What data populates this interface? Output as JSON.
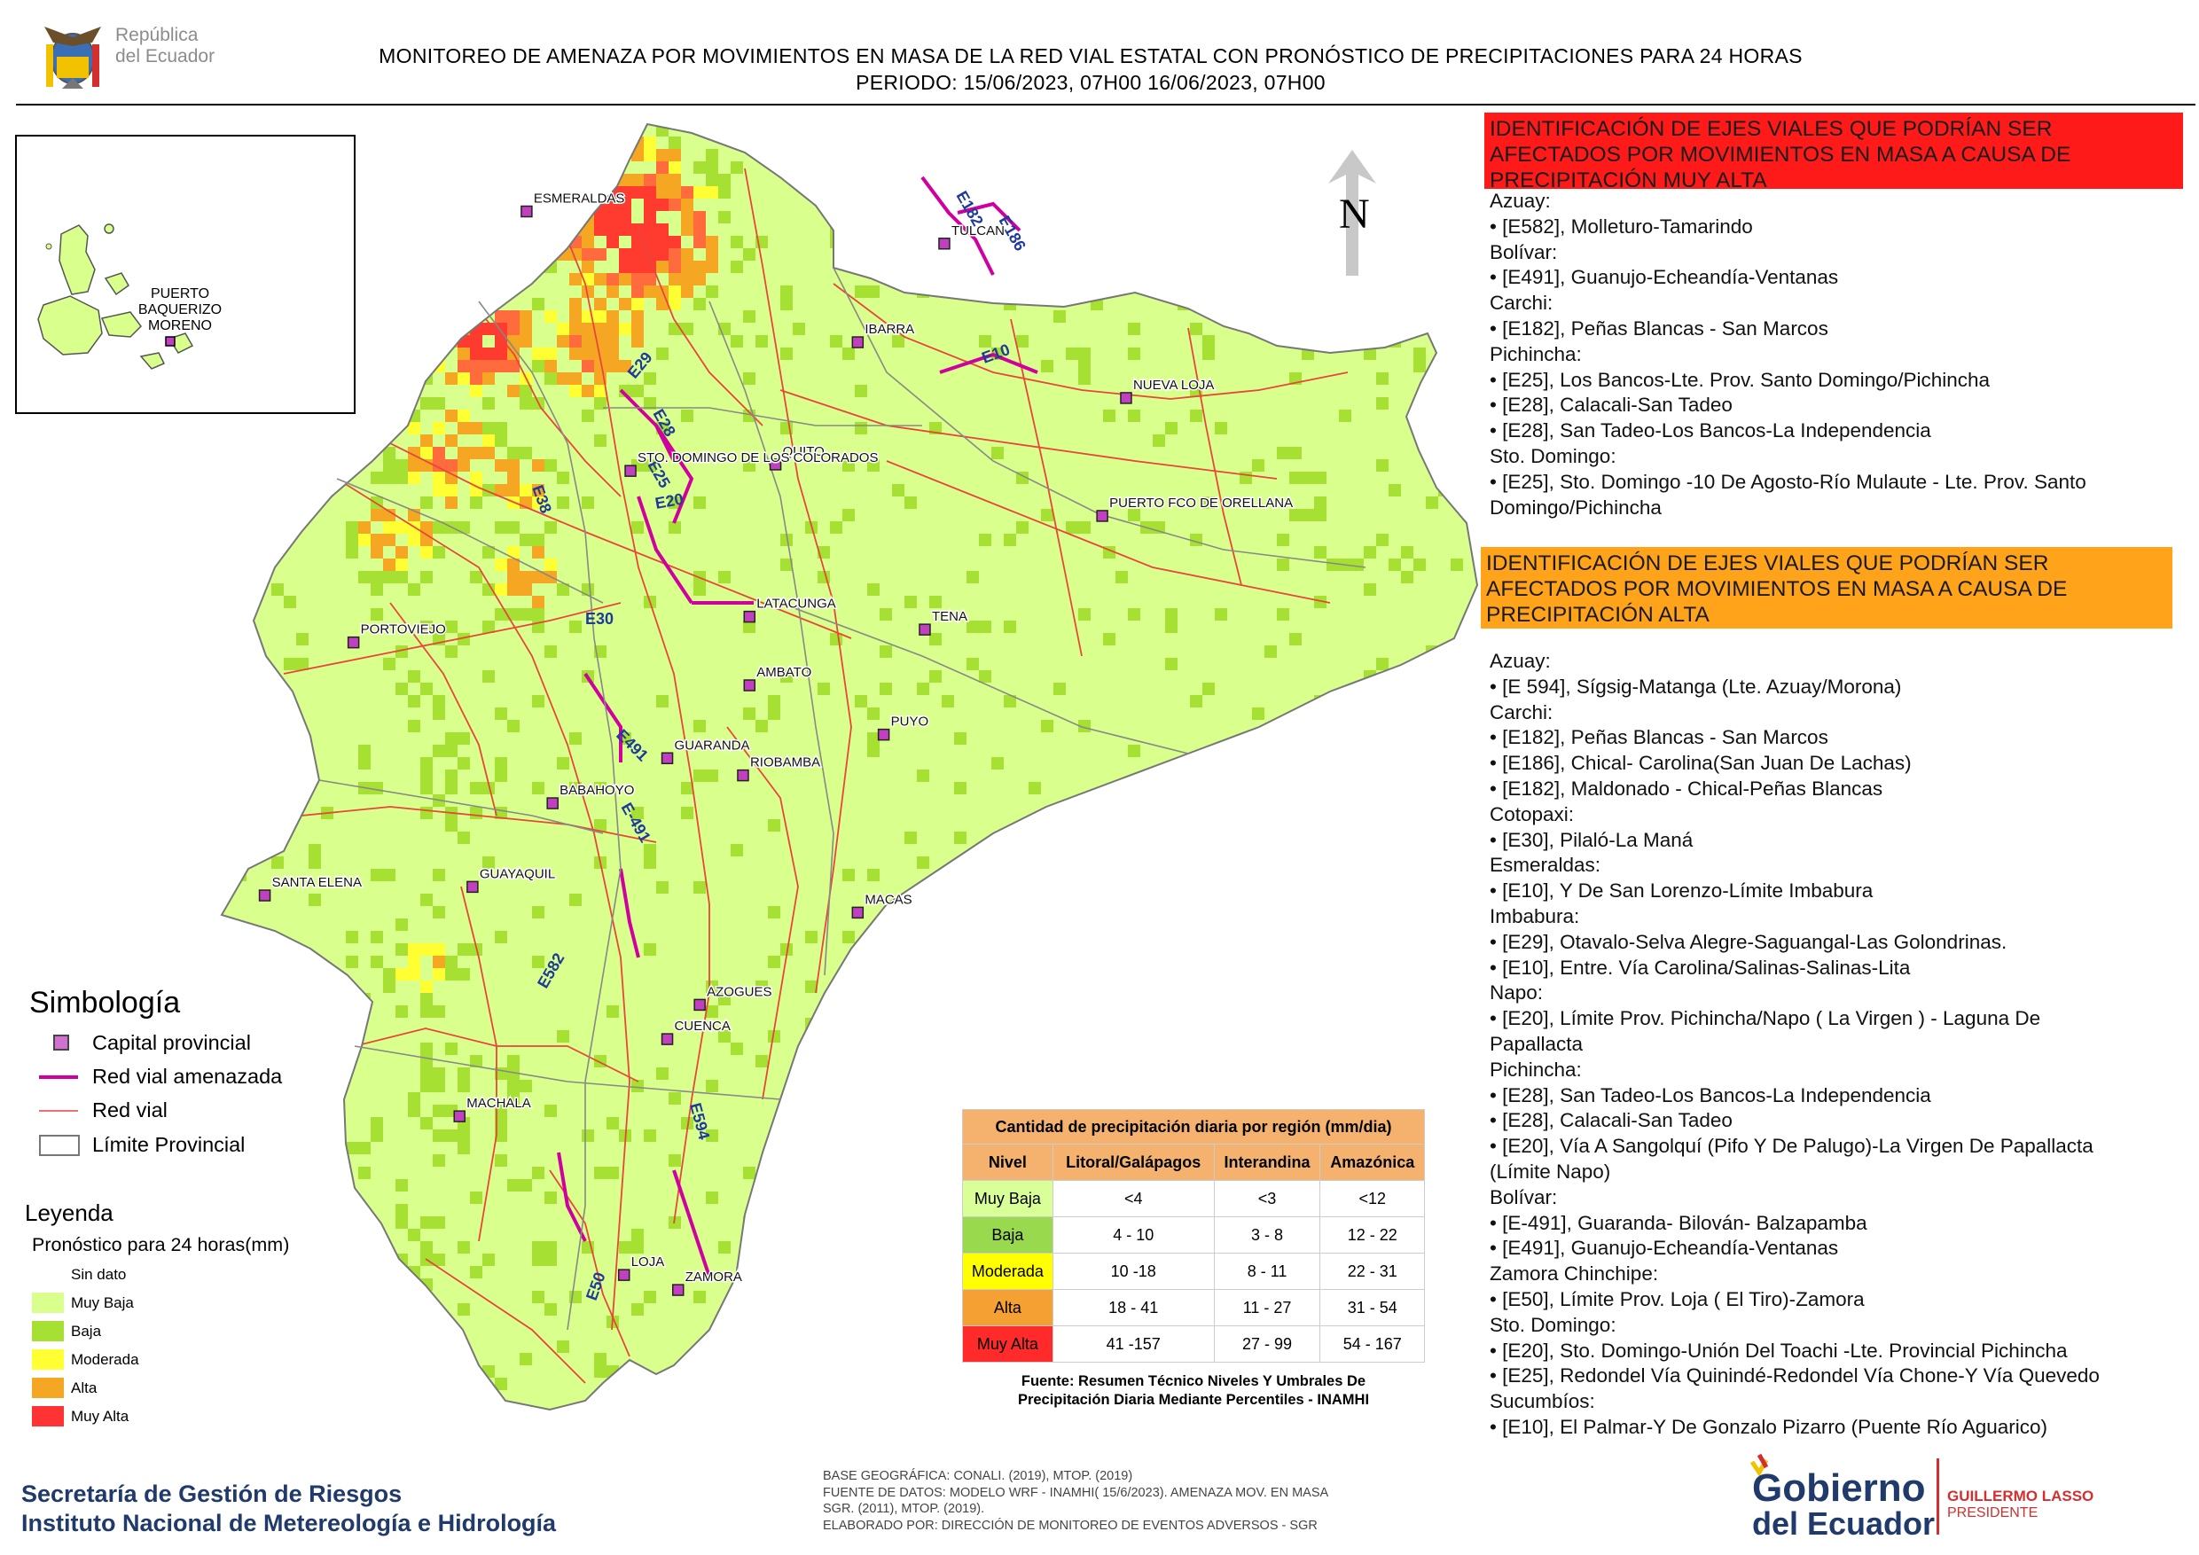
{
  "header": {
    "republica_line1": "República",
    "republica_line2": "del Ecuador",
    "title_line1": "MONITOREO DE AMENAZA POR MOVIMIENTOS EN MASA DE LA RED VIAL  ESTATAL  CON PRONÓSTICO  DE  PRECIPITACIONES PARA 24 HORAS",
    "title_line2": "PERIODO: 15/06/2023, 07H00 16/06/2023, 07H00"
  },
  "map": {
    "north_label": "N",
    "inset_city": [
      "PUERTO",
      "BAQUERIZO",
      "MORENO"
    ],
    "cities": [
      {
        "name": "ESMERALDAS",
        "lon": -79.65,
        "lat": 0.96
      },
      {
        "name": "TULCAN",
        "lon": -77.72,
        "lat": 0.81
      },
      {
        "name": "IBARRA",
        "lon": -78.12,
        "lat": 0.35
      },
      {
        "name": "NUEVA LOJA",
        "lon": -76.88,
        "lat": 0.09
      },
      {
        "name": "QUITO",
        "lon": -78.5,
        "lat": -0.22
      },
      {
        "name": "STO. DOMINGO DE LOS COLORADOS",
        "lon": -79.17,
        "lat": -0.25
      },
      {
        "name": "PUERTO FCO DE ORELLANA",
        "lon": -76.99,
        "lat": -0.46
      },
      {
        "name": "LATACUNGA",
        "lon": -78.62,
        "lat": -0.93
      },
      {
        "name": "TENA",
        "lon": -77.81,
        "lat": -0.99
      },
      {
        "name": "PORTOVIEJO",
        "lon": -80.45,
        "lat": -1.05
      },
      {
        "name": "AMBATO",
        "lon": -78.62,
        "lat": -1.25
      },
      {
        "name": "PUYO",
        "lon": -78.0,
        "lat": -1.48
      },
      {
        "name": "GUARANDA",
        "lon": -79.0,
        "lat": -1.59
      },
      {
        "name": "RIOBAMBA",
        "lon": -78.65,
        "lat": -1.67
      },
      {
        "name": "BABAHOYO",
        "lon": -79.53,
        "lat": -1.8
      },
      {
        "name": "GUAYAQUIL",
        "lon": -79.9,
        "lat": -2.19
      },
      {
        "name": "SANTA ELENA",
        "lon": -80.86,
        "lat": -2.23
      },
      {
        "name": "MACAS",
        "lon": -78.12,
        "lat": -2.31
      },
      {
        "name": "AZOGUES",
        "lon": -78.85,
        "lat": -2.74
      },
      {
        "name": "CUENCA",
        "lon": -79.0,
        "lat": -2.9
      },
      {
        "name": "MACHALA",
        "lon": -79.96,
        "lat": -3.26
      },
      {
        "name": "LOJA",
        "lon": -79.2,
        "lat": -4.0
      },
      {
        "name": "ZAMORA",
        "lon": -78.95,
        "lat": -4.07
      }
    ],
    "road_labels": [
      "E182",
      "E186",
      "E10",
      "E29",
      "E28",
      "E25",
      "E20",
      "E38",
      "E30",
      "E491",
      "E-491",
      "E582",
      "E594",
      "E50"
    ]
  },
  "panel_red": {
    "heading": [
      "IDENTIFICACIÓN DE EJES VIALES QUE PODRÍAN SER",
      "AFECTADOS POR MOVIMIENTOS EN MASA A CAUSA DE",
      "PRECIPITACIÓN MUY ALTA"
    ],
    "lines": [
      "Azuay:",
      "• [E582], Molleturo-Tamarindo",
      "Bolívar:",
      "• [E491], Guanujo-Echeandía-Ventanas",
      "Carchi:",
      "• [E182], Peñas Blancas - San Marcos",
      "Pichincha:",
      "• [E25], Los Bancos-Lte. Prov. Santo Domingo/Pichincha",
      "• [E28], Calacali-San Tadeo",
      "• [E28], San Tadeo-Los Bancos-La Independencia",
      "Sto. Domingo:",
      "• [E25], Sto. Domingo -10 De Agosto-Río Mulaute - Lte. Prov. Santo",
      "Domingo/Pichincha"
    ]
  },
  "panel_orange": {
    "heading": [
      "IDENTIFICACIÓN DE EJES VIALES QUE PODRÍAN SER",
      "AFECTADOS POR MOVIMIENTOS EN MASA A CAUSA DE",
      "PRECIPITACIÓN  ALTA"
    ],
    "lines": [
      "Azuay:",
      "• [E 594], Sígsig-Matanga (Lte. Azuay/Morona)",
      "Carchi:",
      "• [E182], Peñas Blancas - San Marcos",
      "• [E186], Chical- Carolina(San Juan De Lachas)",
      "• [E182], Maldonado - Chical-Peñas Blancas",
      "Cotopaxi:",
      "• [E30], Pilaló-La Maná",
      "Esmeraldas:",
      "• [E10], Y De San Lorenzo-Límite Imbabura",
      "Imbabura:",
      "• [E29], Otavalo-Selva Alegre-Saguangal-Las Golondrinas.",
      "• [E10], Entre. Vía Carolina/Salinas-Salinas-Lita",
      "Napo:",
      "• [E20], Límite Prov. Pichincha/Napo ( La Virgen ) - Laguna De",
      "Papallacta",
      "Pichincha:",
      "• [E28], San Tadeo-Los Bancos-La Independencia",
      "• [E28], Calacali-San Tadeo",
      "• [E20], Vía A Sangolquí (Pifo Y De Palugo)-La Virgen De Papallacta",
      "(Límite Napo)",
      "Bolívar:",
      "• [E-491], Guaranda- Bilován- Balzapamba",
      "• [E491], Guanujo-Echeandía-Ventanas",
      "Zamora Chinchipe:",
      "• [E50], Límite Prov. Loja ( El Tiro)-Zamora",
      "Sto. Domingo:",
      "• [E20], Sto. Domingo-Unión Del Toachi -Lte. Provincial Pichincha",
      "• [E25], Redondel Vía Quinindé-Redondel Vía Chone-Y Vía Quevedo",
      "Sucumbíos:",
      "• [E10], El Palmar-Y De Gonzalo Pizarro (Puente Río Aguarico)"
    ]
  },
  "simbologia": {
    "title": "Simbología",
    "capital": "Capital provincial",
    "threatened": "Red vial amenazada",
    "road": "Red vial",
    "boundary": "Límite Provincial"
  },
  "leyenda": {
    "title": "Leyenda",
    "subtitle": "Pronóstico para 24 horas(mm)",
    "items": [
      {
        "label": "Sin dato",
        "color": "#ffffff"
      },
      {
        "label": "Muy Baja",
        "color": "#d9ff8c"
      },
      {
        "label": "Baja",
        "color": "#a6e033"
      },
      {
        "label": "Moderada",
        "color": "#ffff33"
      },
      {
        "label": "Alta",
        "color": "#f5a623"
      },
      {
        "label": "Muy Alta",
        "color": "#ff3333"
      }
    ]
  },
  "precip_table": {
    "caption": "Cantidad de precipitación diaria por región (mm/dia)",
    "headers": [
      "Nivel",
      "Litoral/Galápagos",
      "Interandina",
      "Amazónica"
    ],
    "rows": [
      {
        "level": "Muy Baja",
        "color": "#d9ff99",
        "values": [
          "<4",
          "<3",
          "<12"
        ]
      },
      {
        "level": "Baja",
        "color": "#99d94d",
        "values": [
          "4 - 10",
          "3 - 8",
          "12 - 22"
        ]
      },
      {
        "level": "Moderada",
        "color": "#ffff00",
        "values": [
          "10 -18",
          "8 - 11",
          "22 - 31"
        ]
      },
      {
        "level": "Alta",
        "color": "#f5a033",
        "values": [
          "18 - 41",
          "11 - 27",
          "31 - 54"
        ]
      },
      {
        "level": "Muy Alta",
        "color": "#ff2a2a",
        "values": [
          "41 -157",
          "27 - 99",
          "54 - 167"
        ]
      }
    ],
    "source_line1": "Fuente: Resumen Técnico Niveles Y Umbrales De",
    "source_line2": "Precipitación Diaria Mediante Percentiles - INAMHI"
  },
  "footer": {
    "sgr_line1": "Secretaría de Gestión de Riesgos",
    "sgr_line2": "Instituto Nacional de Metereología e Hidrología",
    "base_lines": [
      "BASE GEOGRÁFICA: CONALI. (2019), MTOP. (2019)",
      "FUENTE DE DATOS: MODELO WRF - INAMHI( 15/6/2023).  AMENAZA MOV. EN MASA",
      "SGR. (2011), MTOP. (2019).",
      "ELABORADO POR: DIRECCIÓN DE MONITOREO DE EVENTOS ADVERSOS - SGR"
    ],
    "gob_line1": "Gobierno",
    "gob_line2": "del Ecuador",
    "president_name": "GUILLERMO LASSO",
    "president_title": "PRESIDENTE"
  }
}
